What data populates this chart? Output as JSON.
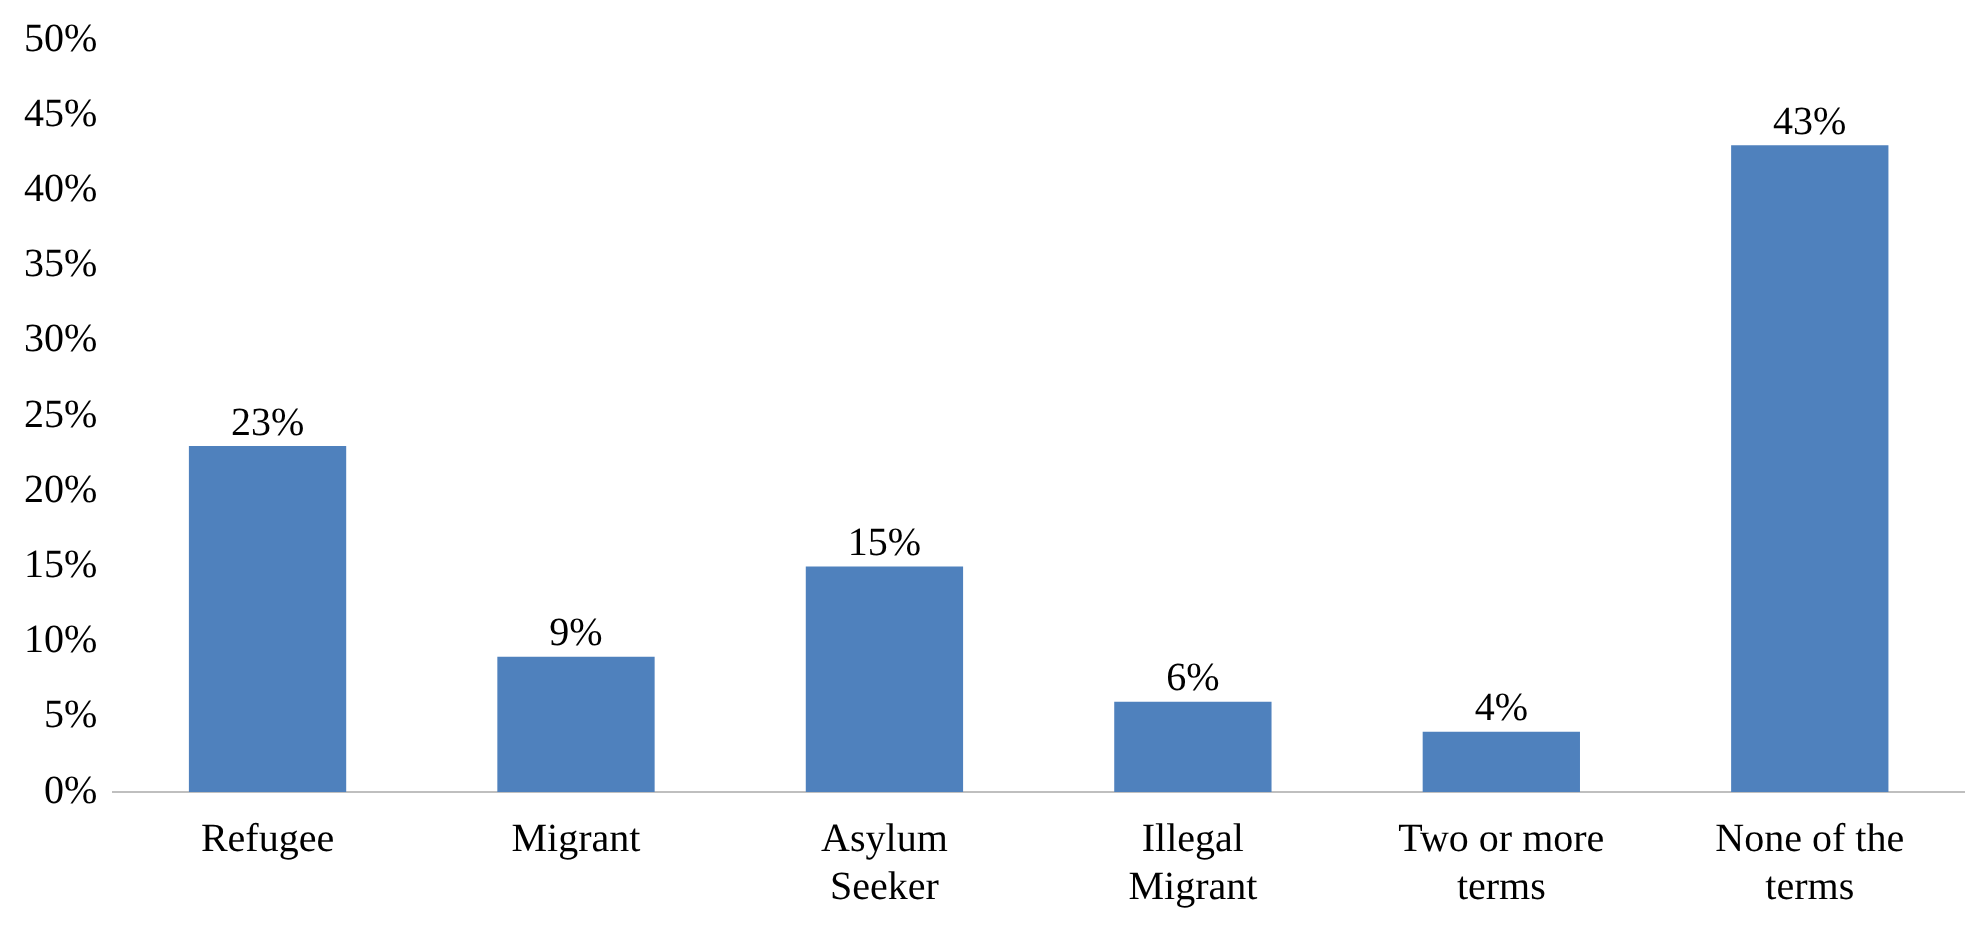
{
  "chart_data": {
    "type": "bar",
    "categories": [
      "Refugee",
      "Migrant",
      "Asylum Seeker",
      "Illegal Migrant",
      "Two or more terms",
      "None of the terms"
    ],
    "values": [
      23,
      9,
      15,
      6,
      4,
      43
    ],
    "color": "#4f81bd",
    "value_labels": [
      "23%",
      "9%",
      "15%",
      "6%",
      "4%",
      "43%"
    ],
    "ylim": [
      0,
      50
    ],
    "yticks": [
      {
        "value": 0,
        "label": "0%"
      },
      {
        "value": 5,
        "label": "5%"
      },
      {
        "value": 10,
        "label": "10%"
      },
      {
        "value": 15,
        "label": "15%"
      },
      {
        "value": 20,
        "label": "20%"
      },
      {
        "value": 25,
        "label": "25%"
      },
      {
        "value": 30,
        "label": "30%"
      },
      {
        "value": 35,
        "label": "35%"
      },
      {
        "value": 40,
        "label": "40%"
      },
      {
        "value": 45,
        "label": "45%"
      },
      {
        "value": 50,
        "label": "50%"
      }
    ],
    "grid": false,
    "legend": false
  }
}
